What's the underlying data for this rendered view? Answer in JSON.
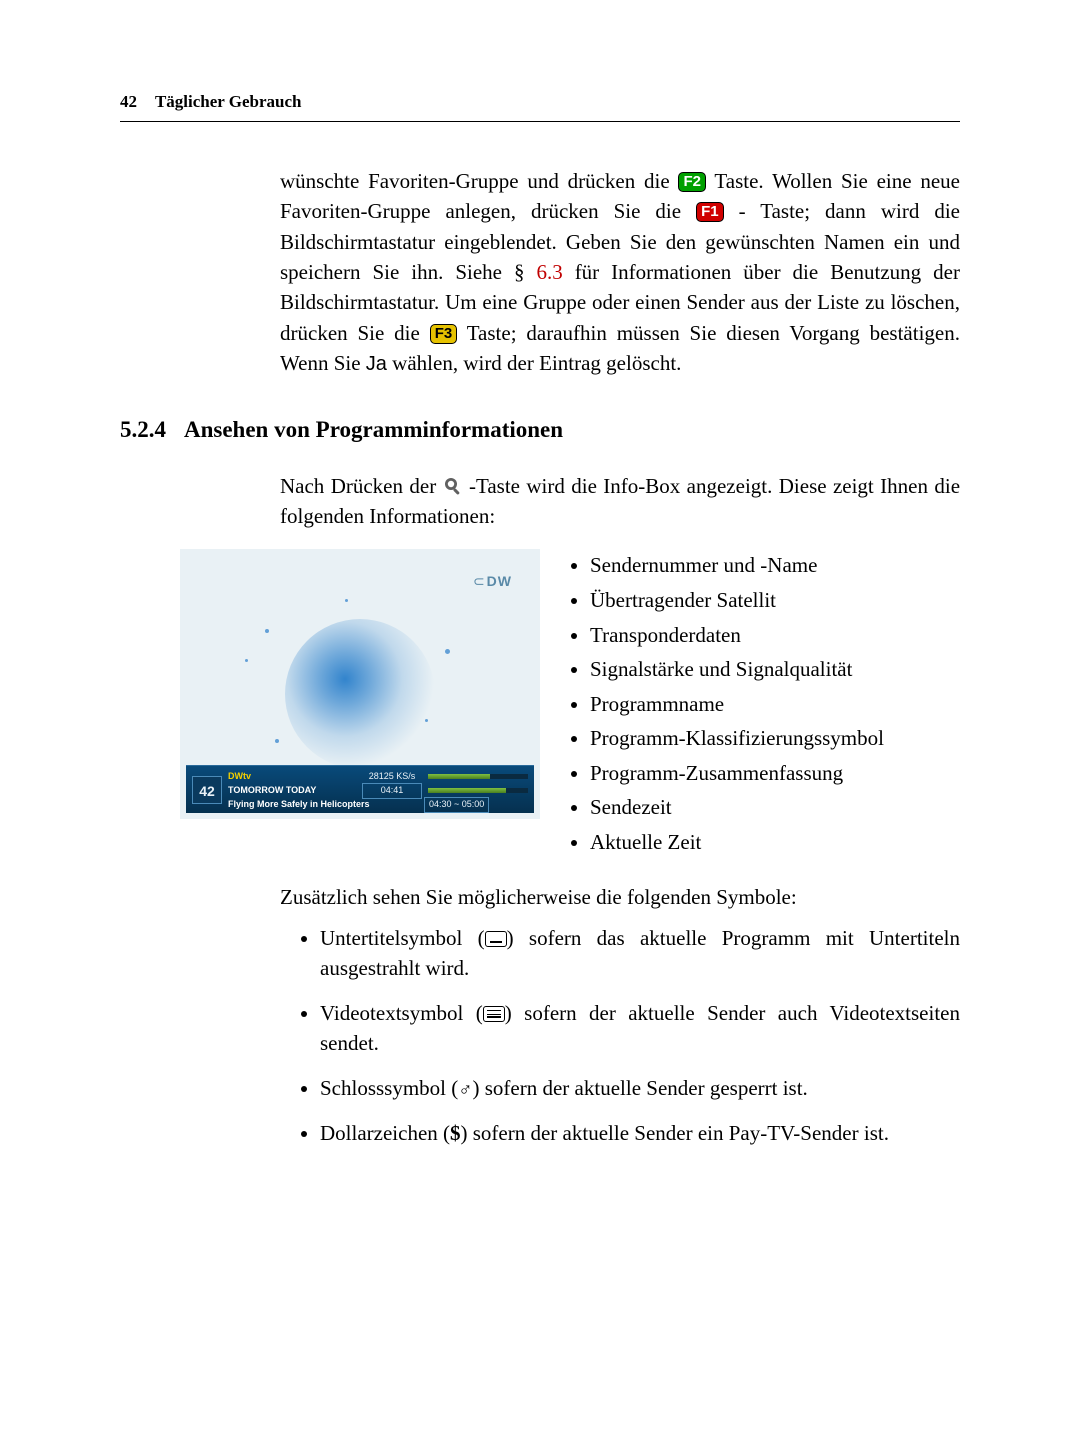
{
  "header": {
    "page_number": "42",
    "running_title": "Täglicher Gebrauch"
  },
  "para1": {
    "seg1": "wünschte Favoriten-Gruppe und drücken die ",
    "key_f2": "F2",
    "seg2": " Taste. Wollen Sie eine neue Favoriten-Gruppe anlegen, drücken Sie die ",
    "key_f1": "F1",
    "seg3": " - Taste; dann wird die Bildschirmtastatur eingeblendet. Geben Sie den gewünschten Namen ein und speichern Sie ihn. Siehe § ",
    "xref": "6.3",
    "seg4": " für Informationen über die Benutzung der Bildschirmtastatur. Um eine Gruppe oder einen Sender aus der Liste zu löschen, drücken Sie die ",
    "key_f3": "F3",
    "seg5": " Taste; daraufhin müssen Sie diesen Vorgang bestätigen. Wenn Sie ",
    "ja": "Ja",
    "seg6": " wählen, wird der Eintrag gelöscht."
  },
  "section": {
    "number": "5.2.4",
    "title": "Ansehen von Programminformationen"
  },
  "para2": {
    "seg1": "Nach Drücken der ",
    "seg2": "-Taste wird die Info-Box angezeigt. Diese zeigt Ihnen die folgenden Informationen:"
  },
  "screenshot": {
    "logo": "DW",
    "channel_no": "42",
    "row1a": "DWtv",
    "row1b": "28125 KS/s",
    "row2a": "TOMORROW TODAY",
    "row2time": "04:41",
    "row3a": "Flying More Safely in Helicopters",
    "row3time": "04:30 ~ 05:00",
    "signal1_pct": 62,
    "signal2_pct": 78
  },
  "info_items": [
    "Sendernummer und -Name",
    "Übertragender Satellit",
    "Transponderdaten",
    "Signalstärke und Signalqualität",
    "Programmname",
    "Programm-Klassifizierungssymbol",
    "Programm-Zusammenfassung",
    "Sendezeit",
    "Aktuelle Zeit"
  ],
  "para3": "Zusätzlich sehen Sie möglicherweise die folgenden Symbole:",
  "symbols": [
    {
      "pre": "Untertitelsymbol (",
      "post": ") sofern das aktuelle Programm mit Untertiteln ausgestrahlt wird."
    },
    {
      "pre": "Videotextsymbol (",
      "post": ") sofern der aktuelle Sender auch Videotextseiten sendet."
    },
    {
      "pre": "Schlosssymbol (",
      "post": ") sofern der aktuelle Sender gesperrt ist."
    },
    {
      "pre": "Dollarzeichen (",
      "glyph": "$",
      "post": ") sofern der aktuelle Sender ein Pay-TV-Sender ist."
    }
  ]
}
